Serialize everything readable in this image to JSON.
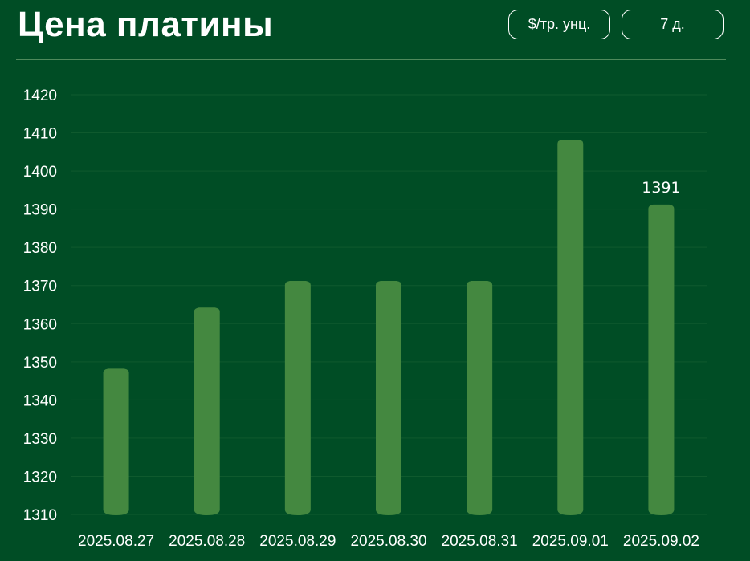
{
  "header": {
    "title": "Цена платины",
    "unit_button": "$/тр. унц.",
    "range_button": "7 д."
  },
  "colors": {
    "background": "#004d25",
    "bar": "#448840",
    "grid": "#0f5a2e",
    "divider": "#4f8a5c"
  },
  "chart_data": {
    "type": "bar",
    "title": "Цена платины",
    "xlabel": "",
    "ylabel": "",
    "categories": [
      "2025.08.27",
      "2025.08.28",
      "2025.08.29",
      "2025.08.30",
      "2025.08.31",
      "2025.09.01",
      "2025.09.02"
    ],
    "values": [
      1348,
      1364,
      1371,
      1371,
      1371,
      1408,
      1391
    ],
    "ylim": [
      1310,
      1420
    ],
    "yticks": [
      1310,
      1320,
      1330,
      1340,
      1350,
      1360,
      1370,
      1380,
      1390,
      1400,
      1410,
      1420
    ],
    "data_labels": [
      {
        "index": 6,
        "text": "1391"
      }
    ],
    "grid": true,
    "legend": "none"
  }
}
